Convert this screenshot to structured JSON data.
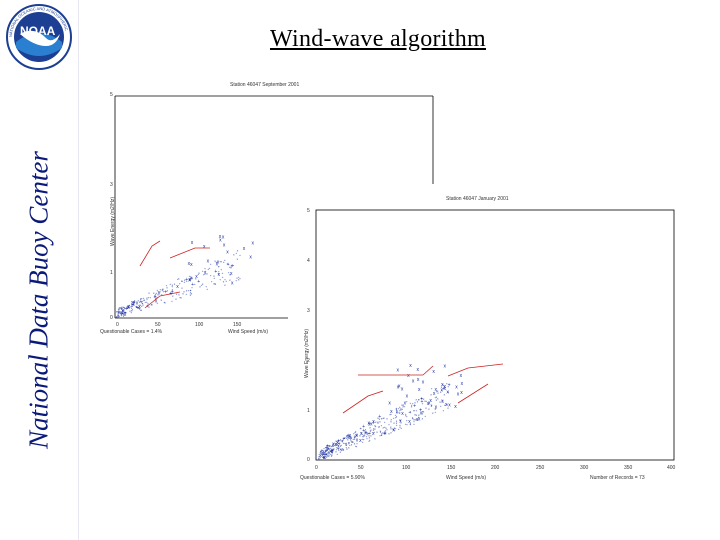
{
  "slide": {
    "title": "Wind-wave algorithm",
    "sidebar_title": "National Data Buoy Center",
    "logo_text": "NOAA"
  },
  "colors": {
    "sidebar_text": "#0b1a7a",
    "points": "#1a2fa0",
    "guide_lines": "#cc2222"
  },
  "chart_data": [
    {
      "type": "scatter",
      "title": "Station 46047 September 2001",
      "xlabel": "Wind Speed (m/s)",
      "ylabel": "Wave Energy (m2/Hz)",
      "annotation": "Questionable Cases = 1.4%",
      "xlim": [
        0,
        400
      ],
      "ylim": [
        0,
        5
      ],
      "x_ticks": [
        "0",
        "50",
        "100",
        "150",
        "200"
      ],
      "y_ticks": [
        "0",
        "1",
        "2",
        "3",
        "4",
        "5"
      ]
    },
    {
      "type": "scatter",
      "title": "Station 46047 January 2001",
      "xlabel": "Wind Speed (m/s)",
      "ylabel": "Wave Energy (m2/Hz)",
      "annotation": "Questionable Cases = 5.90%",
      "records_label": "Number of Records = 73",
      "xlim": [
        0,
        400
      ],
      "ylim": [
        0,
        5
      ],
      "x_ticks": [
        "0",
        "50",
        "100",
        "150",
        "200",
        "250",
        "300",
        "350",
        "400"
      ],
      "y_ticks": [
        "0",
        "1",
        "2",
        "3",
        "4",
        "5"
      ]
    }
  ]
}
